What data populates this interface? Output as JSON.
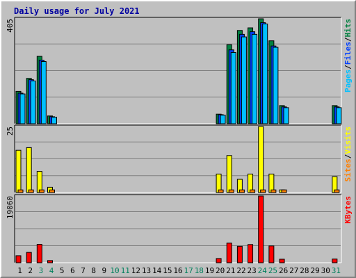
{
  "chart_data": {
    "type": "bar",
    "title": "Daily usage for July 2021",
    "categories": [
      "1",
      "2",
      "3",
      "4",
      "5",
      "6",
      "7",
      "8",
      "9",
      "10",
      "11",
      "12",
      "13",
      "14",
      "15",
      "16",
      "17",
      "18",
      "19",
      "20",
      "21",
      "22",
      "23",
      "24",
      "25",
      "26",
      "27",
      "28",
      "29",
      "30",
      "31"
    ],
    "weekend_days": [
      3,
      4,
      10,
      11,
      17,
      18,
      24,
      25,
      31
    ],
    "panels": [
      {
        "axis_max_label": "405",
        "ylim": [
          0,
          405
        ],
        "side_legend": [
          {
            "text": "Hits",
            "color": "#008040"
          },
          {
            "text": "/",
            "color": "#000000"
          },
          {
            "text": "Files",
            "color": "#0040ff"
          },
          {
            "text": "/",
            "color": "#000000"
          },
          {
            "text": "Pages",
            "color": "#00c0ff"
          }
        ],
        "series": [
          {
            "name": "Hits",
            "color": "#008040",
            "offset": 0,
            "values": [
              125,
              175,
              260,
              30,
              0,
              0,
              0,
              0,
              0,
              0,
              0,
              0,
              0,
              0,
              0,
              0,
              0,
              0,
              0,
              37,
              305,
              360,
              370,
              405,
              320,
              70,
              0,
              0,
              0,
              0,
              70
            ]
          },
          {
            "name": "Files",
            "color": "#0040ff",
            "offset": 1,
            "values": [
              118,
              170,
              245,
              27,
              0,
              0,
              0,
              0,
              0,
              0,
              0,
              0,
              0,
              0,
              0,
              0,
              0,
              0,
              0,
              35,
              285,
              345,
              355,
              390,
              300,
              65,
              0,
              0,
              0,
              0,
              65
            ]
          },
          {
            "name": "Pages",
            "color": "#00c0ff",
            "offset": 2,
            "values": [
              115,
              165,
              240,
              25,
              0,
              0,
              0,
              0,
              0,
              0,
              0,
              0,
              0,
              0,
              0,
              0,
              0,
              0,
              0,
              33,
              275,
              335,
              345,
              385,
              295,
              62,
              0,
              0,
              0,
              0,
              62
            ]
          }
        ]
      },
      {
        "axis_max_label": "25",
        "ylim": [
          0,
          25
        ],
        "side_legend": [
          {
            "text": "Visits",
            "color": "#ffff00"
          },
          {
            "text": "/",
            "color": "#000000"
          },
          {
            "text": "Sites",
            "color": "#ff8000"
          }
        ],
        "series": [
          {
            "name": "Visits",
            "color": "#ffff00",
            "offset": 0,
            "values": [
              16,
              17,
              8,
              2,
              0,
              0,
              0,
              0,
              0,
              0,
              0,
              0,
              0,
              0,
              0,
              0,
              0,
              0,
              0,
              7,
              14,
              5,
              7,
              25,
              7,
              1,
              0,
              0,
              0,
              0,
              6
            ]
          },
          {
            "name": "Sites",
            "color": "#ff8000",
            "offset": 1,
            "values": [
              1,
              1,
              1,
              1,
              0,
              0,
              0,
              0,
              0,
              0,
              0,
              0,
              0,
              0,
              0,
              0,
              0,
              0,
              0,
              1,
              1,
              1,
              1,
              1,
              1,
              1,
              0,
              0,
              0,
              0,
              1
            ]
          }
        ]
      },
      {
        "axis_max_label": "19060",
        "ylim": [
          0,
          19060
        ],
        "side_legend": [
          {
            "text": "KBytes",
            "color": "#ff0000"
          }
        ],
        "series": [
          {
            "name": "KBytes",
            "color": "#ff0000",
            "offset": 0,
            "values": [
              2000,
              2950,
              5250,
              620,
              0,
              0,
              0,
              0,
              0,
              0,
              0,
              0,
              0,
              0,
              0,
              0,
              0,
              0,
              0,
              1200,
              5600,
              4700,
              5200,
              19060,
              4800,
              1000,
              0,
              0,
              0,
              0,
              1050
            ]
          }
        ]
      }
    ]
  }
}
